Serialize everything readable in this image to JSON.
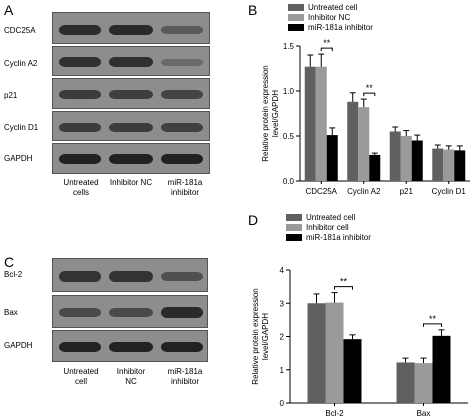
{
  "panels": {
    "A": {
      "letter": "A",
      "rows": [
        "CDC25A",
        "Cyclin A2",
        "p21",
        "Cyclin D1",
        "GAPDH"
      ],
      "lanes": [
        [
          "Untreated",
          "cells"
        ],
        [
          "Inhibitor NC"
        ],
        [
          "miR-181a",
          "inhibitor"
        ]
      ]
    },
    "B": {
      "letter": "B"
    },
    "C": {
      "letter": "C",
      "rows": [
        "Bcl-2",
        "Bax",
        "GAPDH"
      ],
      "lanes": [
        [
          "Untreated",
          "cell"
        ],
        [
          "Inhibitor",
          "NC"
        ],
        [
          "miR-181a",
          "inhibitor"
        ]
      ]
    },
    "D": {
      "letter": "D"
    }
  },
  "colors": {
    "series1": "#606060",
    "series2": "#9a9a9a",
    "series3": "#000000"
  },
  "chart_data": [
    {
      "type": "bar",
      "panel": "B",
      "ylabel": "Relative protein expression level/GAPDH",
      "ylim": [
        0.0,
        1.5
      ],
      "yticks": [
        "0.0",
        "0.5",
        "1.0",
        "1.5"
      ],
      "categories": [
        "CDC25A",
        "Cyclin A2",
        "p21",
        "Cyclin D1"
      ],
      "series": [
        {
          "name": "Untreated cell",
          "values": [
            1.27,
            0.88,
            0.55,
            0.36
          ],
          "errors": [
            0.13,
            0.1,
            0.05,
            0.04
          ]
        },
        {
          "name": "Inhibitor NC",
          "values": [
            1.27,
            0.82,
            0.5,
            0.35
          ],
          "errors": [
            0.14,
            0.09,
            0.06,
            0.04
          ]
        },
        {
          "name": "miR-181a inhibitor",
          "values": [
            0.51,
            0.29,
            0.45,
            0.34
          ],
          "errors": [
            0.08,
            0.02,
            0.06,
            0.05
          ]
        }
      ],
      "significance": [
        {
          "category": "CDC25A",
          "label": "**"
        },
        {
          "category": "Cyclin A2",
          "label": "**"
        }
      ],
      "legend_position": "top-left"
    },
    {
      "type": "bar",
      "panel": "D",
      "ylabel": "Relative protein expression level/GAPDH",
      "ylim": [
        0,
        4
      ],
      "yticks": [
        "0",
        "1",
        "2",
        "3",
        "4"
      ],
      "categories": [
        "Bcl-2",
        "Bax"
      ],
      "series": [
        {
          "name": "Untreated cell",
          "values": [
            3.0,
            1.22
          ],
          "errors": [
            0.28,
            0.13
          ]
        },
        {
          "name": "Inhibitor cell",
          "values": [
            3.02,
            1.2
          ],
          "errors": [
            0.3,
            0.15
          ]
        },
        {
          "name": "miR-181a inhibitor",
          "values": [
            1.92,
            2.02
          ],
          "errors": [
            0.13,
            0.18
          ]
        }
      ],
      "significance": [
        {
          "category": "Bcl-2",
          "label": "**"
        },
        {
          "category": "Bax",
          "label": "**"
        }
      ],
      "legend_position": "top-left"
    }
  ]
}
